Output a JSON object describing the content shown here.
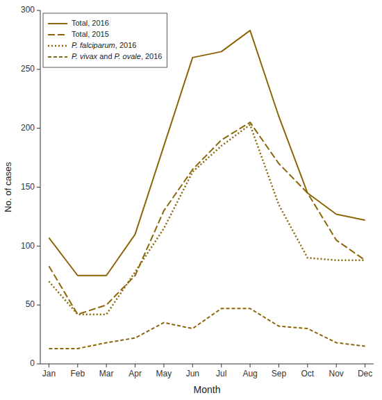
{
  "chart_data": {
    "type": "line",
    "categories": [
      "Jan",
      "Feb",
      "Mar",
      "Apr",
      "May",
      "Jun",
      "Jul",
      "Aug",
      "Sep",
      "Oct",
      "Nov",
      "Dec"
    ],
    "series": [
      {
        "name": "Total, 2016",
        "color": "#8B6508",
        "line_style": "solid",
        "values": [
          107,
          75,
          75,
          110,
          185,
          260,
          265,
          283,
          210,
          145,
          127,
          122
        ]
      },
      {
        "name": "Total, 2015",
        "color": "#8B6508",
        "line_style": "longdash",
        "values": [
          83,
          42,
          50,
          75,
          130,
          165,
          190,
          205,
          170,
          145,
          105,
          88
        ]
      },
      {
        "name": "P. falciparum, 2016",
        "color": "#8B6508",
        "line_style": "dotted",
        "values": [
          70,
          42,
          42,
          78,
          115,
          163,
          185,
          203,
          135,
          90,
          88,
          88
        ]
      },
      {
        "name": "P. vivax and P. ovale, 2016",
        "color": "#8B6508",
        "line_style": "dash",
        "values": [
          13,
          13,
          18,
          22,
          35,
          30,
          47,
          47,
          32,
          30,
          18,
          15
        ]
      }
    ],
    "xlabel": "Month",
    "ylabel": "No. of cases",
    "ylim": [
      0,
      300
    ],
    "yticks": [
      0,
      50,
      100,
      150,
      200,
      250,
      300
    ],
    "grid": false,
    "legend": "upper left"
  }
}
